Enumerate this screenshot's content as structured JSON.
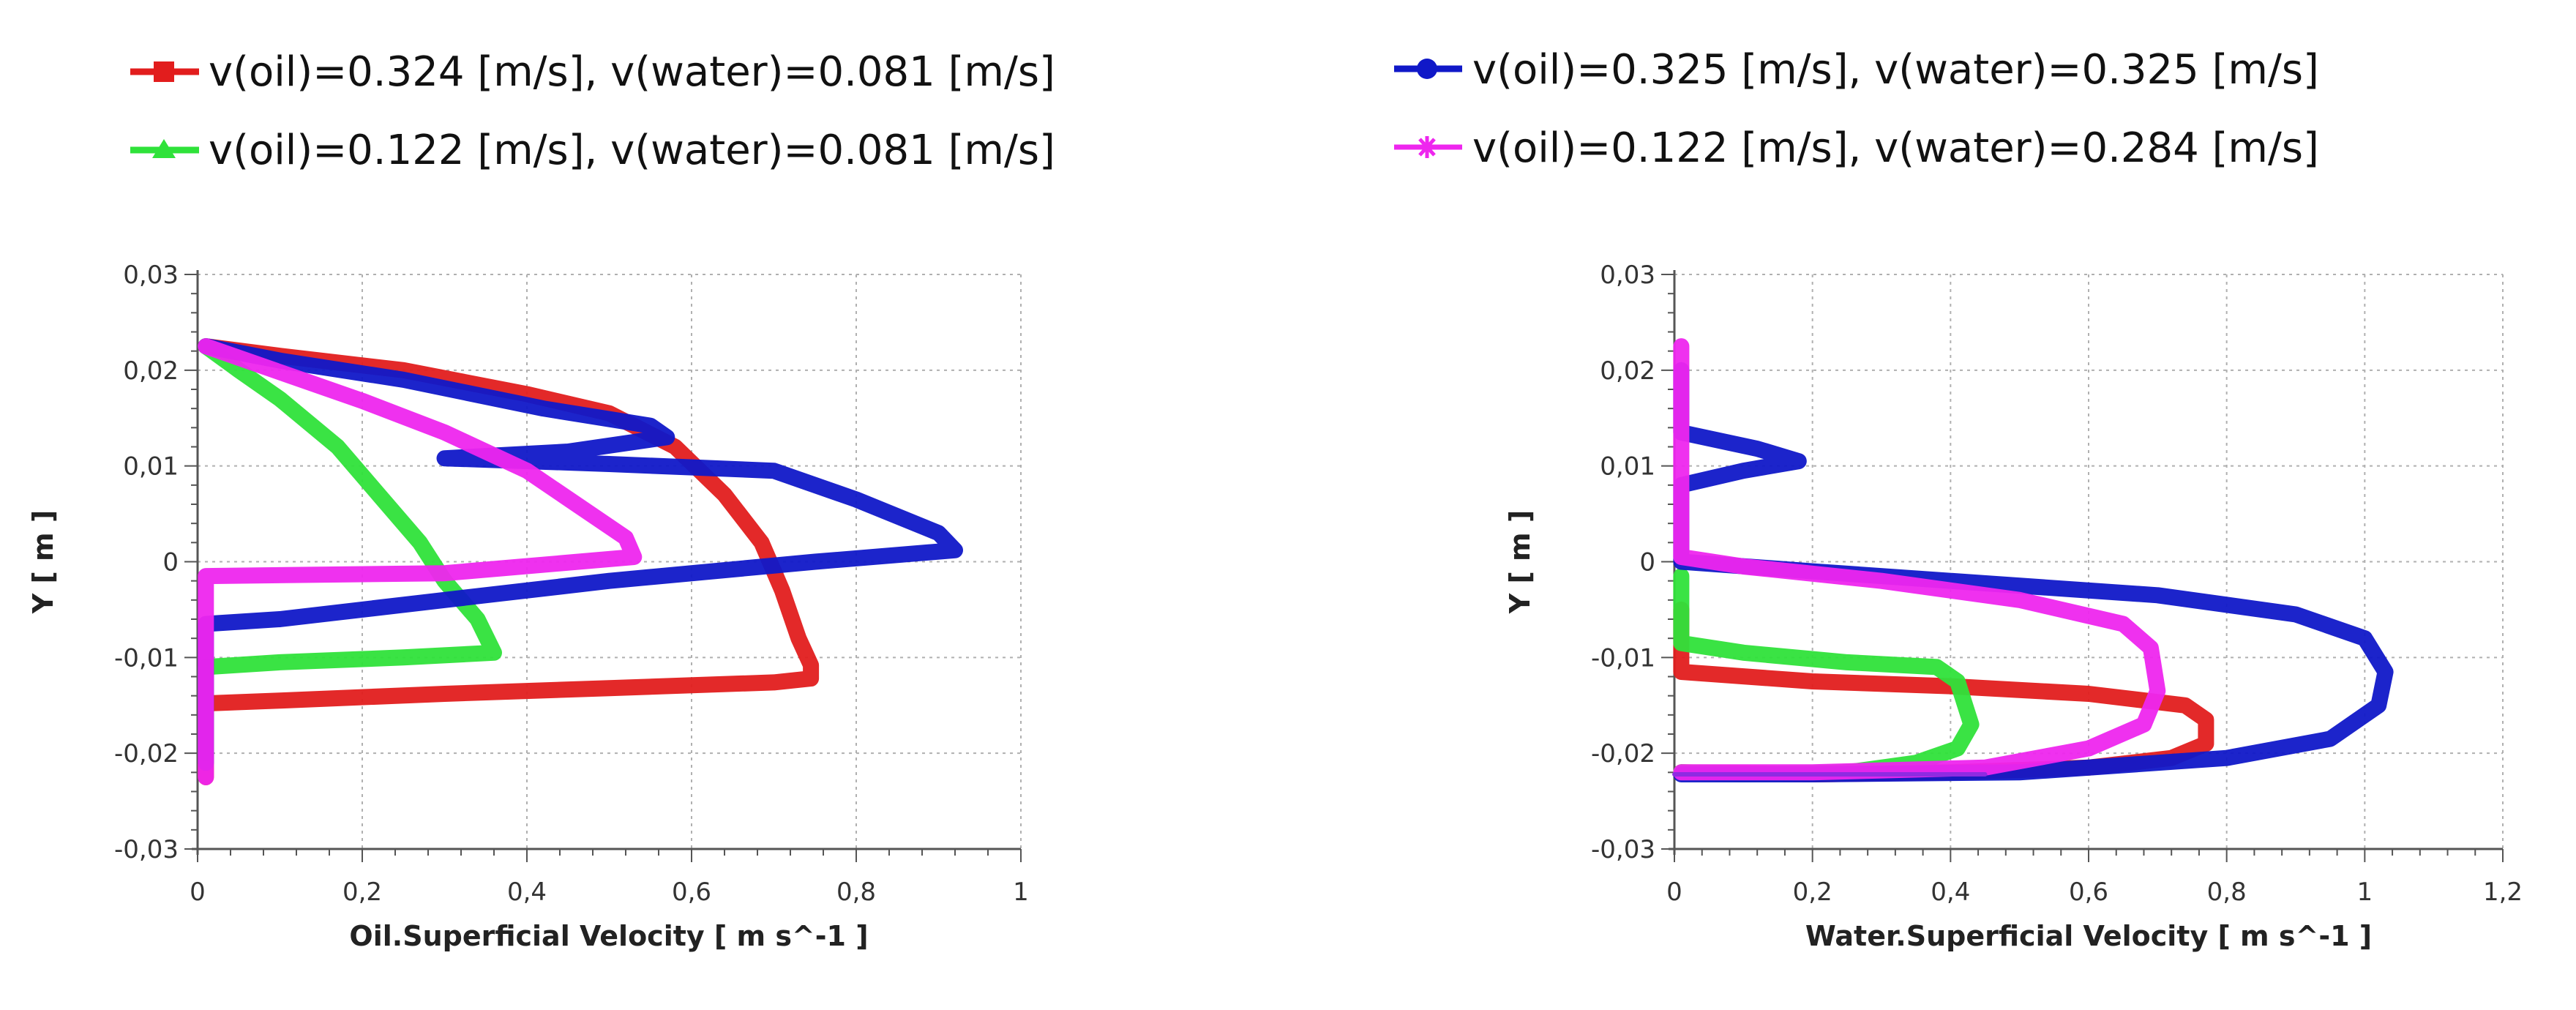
{
  "colors": {
    "red": "#e21d1d",
    "green": "#2fe23a",
    "blue": "#1018c8",
    "magenta": "#ee26ee",
    "purple": "#8a2be2",
    "grid": "#b0b0b0"
  },
  "legend": {
    "left": [
      {
        "text": "v(oil)=0.324 [m/s], v(water)=0.081 [m/s]",
        "color": "#e21d1d",
        "marker": "square"
      },
      {
        "text": "v(oil)=0.122 [m/s], v(water)=0.081 [m/s]",
        "color": "#2fe23a",
        "marker": "triangle"
      }
    ],
    "right": [
      {
        "text": "v(oil)=0.325 [m/s], v(water)=0.325 [m/s]",
        "color": "#1018c8",
        "marker": "circle"
      },
      {
        "text": "v(oil)=0.122 [m/s], v(water)=0.284 [m/s]",
        "color": "#ee26ee",
        "marker": "star"
      }
    ]
  },
  "chart_data": [
    {
      "type": "line",
      "xlabel": "Oil.Superficial Velocity [ m s^-1 ]",
      "ylabel": "Y [ m ]",
      "xlim": [
        0,
        1
      ],
      "ylim": [
        -0.03,
        0.03
      ],
      "xticks": [
        0,
        0.2,
        0.4,
        0.6,
        0.8,
        1
      ],
      "xtick_labels": [
        "0",
        "0,2",
        "0,4",
        "0,6",
        "0,8",
        "1"
      ],
      "yticks": [
        -0.03,
        -0.02,
        -0.01,
        0,
        0.01,
        0.02,
        0.03
      ],
      "ytick_labels": [
        "-0,03",
        "-0,02",
        "-0,01",
        "0",
        "0,01",
        "0,02",
        "0,03"
      ],
      "grid": true,
      "series": [
        {
          "color": "#e21d1d",
          "points": [
            [
              0.01,
              -0.0225
            ],
            [
              0.01,
              -0.016
            ],
            [
              0.01,
              -0.0148
            ],
            [
              0.1,
              -0.0145
            ],
            [
              0.3,
              -0.0138
            ],
            [
              0.5,
              -0.0132
            ],
            [
              0.7,
              -0.0126
            ],
            [
              0.745,
              -0.0122
            ],
            [
              0.745,
              -0.0108
            ],
            [
              0.73,
              -0.008
            ],
            [
              0.71,
              -0.003
            ],
            [
              0.685,
              0.002
            ],
            [
              0.64,
              0.007
            ],
            [
              0.58,
              0.012
            ],
            [
              0.5,
              0.0155
            ],
            [
              0.4,
              0.0175
            ],
            [
              0.25,
              0.02
            ],
            [
              0.1,
              0.0215
            ],
            [
              0.01,
              0.0225
            ]
          ]
        },
        {
          "color": "#2fe23a",
          "points": [
            [
              0.01,
              -0.02
            ],
            [
              0.01,
              -0.013
            ],
            [
              0.01,
              -0.011
            ],
            [
              0.1,
              -0.0105
            ],
            [
              0.25,
              -0.01
            ],
            [
              0.36,
              -0.0095
            ],
            [
              0.34,
              -0.006
            ],
            [
              0.3,
              -0.002
            ],
            [
              0.27,
              0.002
            ],
            [
              0.22,
              0.007
            ],
            [
              0.17,
              0.012
            ],
            [
              0.1,
              0.017
            ],
            [
              0.05,
              0.02
            ],
            [
              0.01,
              0.0225
            ]
          ]
        },
        {
          "color": "#1018c8",
          "points": [
            [
              0.01,
              -0.021
            ],
            [
              0.01,
              -0.01
            ],
            [
              0.01,
              -0.0065
            ],
            [
              0.1,
              -0.006
            ],
            [
              0.3,
              -0.004
            ],
            [
              0.5,
              -0.002
            ],
            [
              0.75,
              0
            ],
            [
              0.92,
              0.0012
            ],
            [
              0.9,
              0.003
            ],
            [
              0.8,
              0.0065
            ],
            [
              0.7,
              0.0095
            ],
            [
              0.5,
              0.0102
            ],
            [
              0.3,
              0.0108
            ],
            [
              0.45,
              0.0115
            ],
            [
              0.57,
              0.013
            ],
            [
              0.55,
              0.0142
            ],
            [
              0.42,
              0.016
            ],
            [
              0.25,
              0.019
            ],
            [
              0.1,
              0.021
            ],
            [
              0.01,
              0.0225
            ]
          ]
        },
        {
          "color": "#ee26ee",
          "points": [
            [
              0.01,
              -0.0225
            ],
            [
              0.01,
              -0.01
            ],
            [
              0.01,
              -0.0015
            ],
            [
              0.3,
              -0.0012
            ],
            [
              0.53,
              0.0005
            ],
            [
              0.52,
              0.0025
            ],
            [
              0.46,
              0.006
            ],
            [
              0.4,
              0.0095
            ],
            [
              0.3,
              0.0135
            ],
            [
              0.2,
              0.0168
            ],
            [
              0.1,
              0.0198
            ],
            [
              0.01,
              0.0225
            ]
          ]
        }
      ]
    },
    {
      "type": "line",
      "xlabel": "Water.Superficial Velocity [ m s^-1 ]",
      "ylabel": "Y [ m ]",
      "xlim": [
        0,
        1.2
      ],
      "ylim": [
        -0.03,
        0.03
      ],
      "xticks": [
        0,
        0.2,
        0.4,
        0.6,
        0.8,
        1,
        1.2
      ],
      "xtick_labels": [
        "0",
        "0,2",
        "0,4",
        "0,6",
        "0,8",
        "1",
        "1,2"
      ],
      "yticks": [
        -0.03,
        -0.02,
        -0.01,
        0,
        0.01,
        0.02,
        0.03
      ],
      "ytick_labels": [
        "-0,03",
        "-0,02",
        "-0,01",
        "0",
        "0,01",
        "0,02",
        "0,03"
      ],
      "grid": true,
      "series": [
        {
          "color": "#e21d1d",
          "points": [
            [
              0.01,
              -0.022
            ],
            [
              0.2,
              -0.0222
            ],
            [
              0.4,
              -0.022
            ],
            [
              0.6,
              -0.0215
            ],
            [
              0.72,
              -0.0205
            ],
            [
              0.77,
              -0.019
            ],
            [
              0.77,
              -0.0165
            ],
            [
              0.74,
              -0.015
            ],
            [
              0.6,
              -0.0138
            ],
            [
              0.4,
              -0.013
            ],
            [
              0.2,
              -0.0125
            ],
            [
              0.01,
              -0.0115
            ],
            [
              0.01,
              -0.005
            ]
          ]
        },
        {
          "color": "#2fe23a",
          "points": [
            [
              0.01,
              -0.022
            ],
            [
              0.1,
              -0.0222
            ],
            [
              0.25,
              -0.022
            ],
            [
              0.35,
              -0.021
            ],
            [
              0.41,
              -0.0195
            ],
            [
              0.43,
              -0.017
            ],
            [
              0.41,
              -0.0125
            ],
            [
              0.38,
              -0.011
            ],
            [
              0.25,
              -0.0105
            ],
            [
              0.1,
              -0.0095
            ],
            [
              0.01,
              -0.0085
            ],
            [
              0.01,
              -0.0015
            ]
          ]
        },
        {
          "color": "#1018c8",
          "points": [
            [
              0.01,
              -0.0222
            ],
            [
              0.2,
              -0.0222
            ],
            [
              0.5,
              -0.022
            ],
            [
              0.8,
              -0.0205
            ],
            [
              0.95,
              -0.0185
            ],
            [
              1.02,
              -0.015
            ],
            [
              1.03,
              -0.0115
            ],
            [
              1.0,
              -0.008
            ],
            [
              0.9,
              -0.0055
            ],
            [
              0.7,
              -0.0035
            ],
            [
              0.4,
              -0.002
            ],
            [
              0.2,
              -0.001
            ],
            [
              0.01,
              0
            ],
            [
              0.01,
              0.008
            ],
            [
              0.1,
              0.0095
            ],
            [
              0.18,
              0.0105
            ],
            [
              0.12,
              0.0118
            ],
            [
              0.01,
              0.0135
            ],
            [
              0.01,
              0.02
            ]
          ]
        },
        {
          "color": "#ee26ee",
          "points": [
            [
              0.01,
              -0.022
            ],
            [
              0.2,
              -0.022
            ],
            [
              0.45,
              -0.0215
            ],
            [
              0.6,
              -0.0195
            ],
            [
              0.68,
              -0.017
            ],
            [
              0.7,
              -0.0135
            ],
            [
              0.69,
              -0.009
            ],
            [
              0.65,
              -0.0065
            ],
            [
              0.5,
              -0.004
            ],
            [
              0.3,
              -0.002
            ],
            [
              0.1,
              -0.0005
            ],
            [
              0.01,
              0.0005
            ],
            [
              0.01,
              0.01
            ],
            [
              0.01,
              0.0225
            ]
          ]
        },
        {
          "color": "#8a2be2",
          "points": [
            [
              0.0,
              -0.0222
            ],
            [
              0.45,
              -0.0222
            ]
          ]
        }
      ]
    }
  ]
}
